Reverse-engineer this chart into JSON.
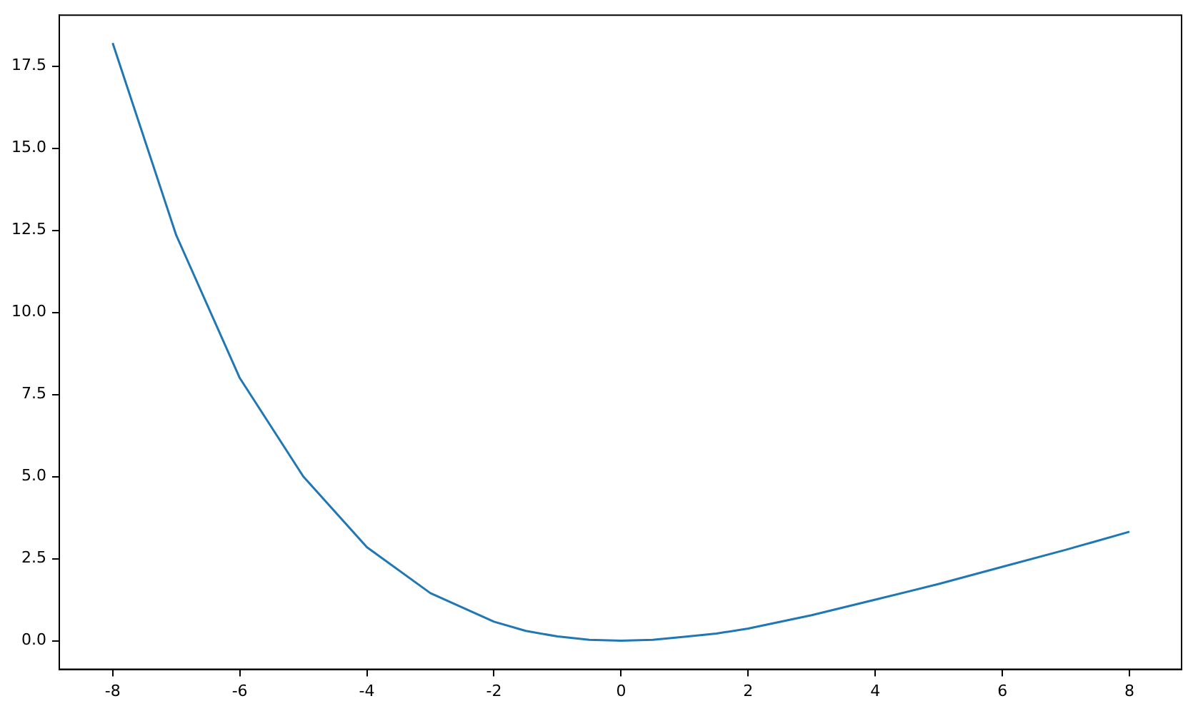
{
  "chart_data": {
    "type": "line",
    "x": [
      -8,
      -7,
      -6,
      -5,
      -4,
      -3,
      -2,
      -1.5,
      -1,
      -0.5,
      0,
      0.5,
      1,
      1.5,
      2,
      3,
      4,
      5,
      6,
      7,
      8
    ],
    "series": [
      {
        "color": "#1f77b4",
        "values": [
          18.2,
          12.35,
          8.0,
          5.0,
          2.85,
          1.45,
          0.58,
          0.3,
          0.13,
          0.03,
          0,
          0.03,
          0.12,
          0.22,
          0.37,
          0.78,
          1.25,
          1.73,
          2.25,
          2.77,
          3.32
        ]
      }
    ],
    "xlim": [
      -8.84,
      8.82
    ],
    "ylim": [
      -0.87,
      19.05
    ],
    "xticks": [
      -8,
      -6,
      -4,
      -2,
      0,
      2,
      4,
      6,
      8
    ],
    "yticks": [
      {
        "value": 0,
        "label": "0.0"
      },
      {
        "value": 2.5,
        "label": "2.5"
      },
      {
        "value": 5,
        "label": "5.0"
      },
      {
        "value": 7.5,
        "label": "7.5"
      },
      {
        "value": 10,
        "label": "10.0"
      },
      {
        "value": 12.5,
        "label": "12.5"
      },
      {
        "value": 15,
        "label": "15.0"
      },
      {
        "value": 17.5,
        "label": "17.5"
      }
    ],
    "grid": false,
    "legend": false,
    "marker": "none",
    "line_style": "solid"
  }
}
